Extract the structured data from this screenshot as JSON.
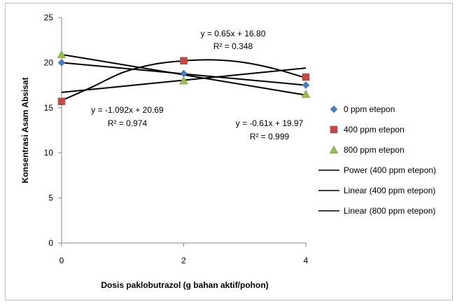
{
  "chart_data": {
    "type": "scatter",
    "title": "",
    "xlabel": "Dosis paklobutrazol  (g bahan aktif/pohon)",
    "ylabel": "Konsentrasi Asam  Absisat",
    "xlim": [
      0,
      4
    ],
    "ylim": [
      0,
      25
    ],
    "xticks": [
      0,
      2,
      4
    ],
    "yticks": [
      0,
      5,
      10,
      15,
      20,
      25
    ],
    "grid": false,
    "legend_position": "right",
    "series": [
      {
        "name": "0 ppm etepon",
        "marker": "diamond",
        "color": "#4a7ebb",
        "x": [
          0,
          2,
          4
        ],
        "y": [
          20.0,
          18.8,
          17.5
        ]
      },
      {
        "name": "400 ppm etepon",
        "marker": "square",
        "color": "#be4b48",
        "x": [
          0,
          2,
          4
        ],
        "y": [
          15.7,
          20.2,
          18.4
        ]
      },
      {
        "name": "800 ppm etepon",
        "marker": "triangle",
        "color": "#98b954",
        "x": [
          0,
          2,
          4
        ],
        "y": [
          20.9,
          18.0,
          16.5
        ]
      }
    ],
    "trendlines": [
      {
        "name": "Power (400 ppm etepon)",
        "color": "#000000",
        "x": [
          0,
          0.5,
          1,
          1.5,
          2,
          2.5,
          3,
          3.5,
          4
        ],
        "y": [
          15.8,
          17.3,
          18.9,
          19.8,
          20.2,
          20.3,
          20.0,
          19.3,
          18.3
        ]
      },
      {
        "name": "Linear (400 ppm etepon)",
        "color": "#000000",
        "x": [
          0,
          4
        ],
        "y": [
          16.7,
          19.4
        ]
      },
      {
        "name": "Linear (800 ppm etepon)",
        "color": "#000000",
        "x": [
          0,
          4
        ],
        "y": [
          20.9,
          16.4
        ]
      },
      {
        "name": "",
        "color": "#000000",
        "x": [
          0,
          4
        ],
        "y": [
          20.0,
          17.5
        ]
      }
    ],
    "annotations": [
      {
        "id": "eq-400",
        "line1": "y = 0.65x + 16.80",
        "line2": "R² = 0.348"
      },
      {
        "id": "eq-800",
        "line1": "y = -1.092x + 20.69",
        "line2": "R² = 0.974"
      },
      {
        "id": "eq-0",
        "line1": "y = -0.61x + 19.97",
        "line2": "R² = 0.999"
      }
    ]
  }
}
